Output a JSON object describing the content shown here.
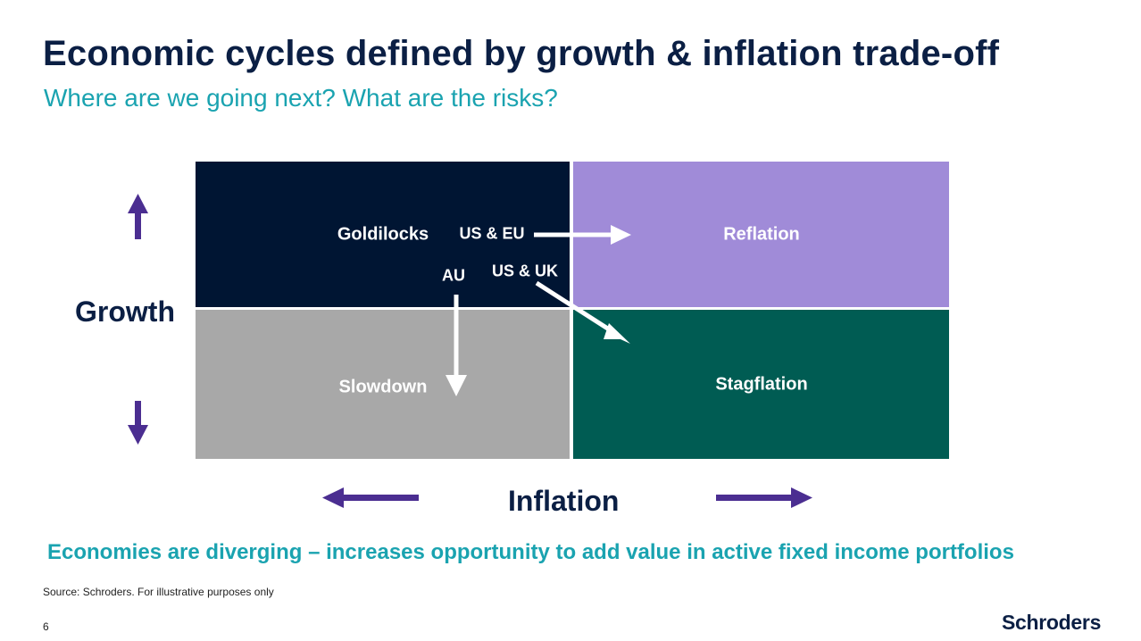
{
  "header": {
    "title": "Economic cycles defined by growth & inflation trade-off",
    "subtitle": "Where are we going next? What are the risks?"
  },
  "quadrants": {
    "goldilocks": "Goldilocks",
    "reflation": "Reflation",
    "slowdown": "Slowdown",
    "stagflation": "Stagflation"
  },
  "regions": {
    "us_eu": "US & EU",
    "au": "AU",
    "us_uk": "US & UK"
  },
  "axes": {
    "growth": "Growth",
    "inflation": "Inflation"
  },
  "takeaway": "Economies are diverging – increases opportunity to add value in active fixed income portfolios",
  "footer": {
    "source": "Source: Schroders. For illustrative purposes only",
    "page_number": "6",
    "logo": "Schroders"
  },
  "colors": {
    "navy": "#001533",
    "lavender": "#a08bd8",
    "grey": "#a8a8a8",
    "teal_green": "#005c53",
    "accent_teal": "#1aa3b0",
    "purple_arrow": "#4b2e91"
  }
}
